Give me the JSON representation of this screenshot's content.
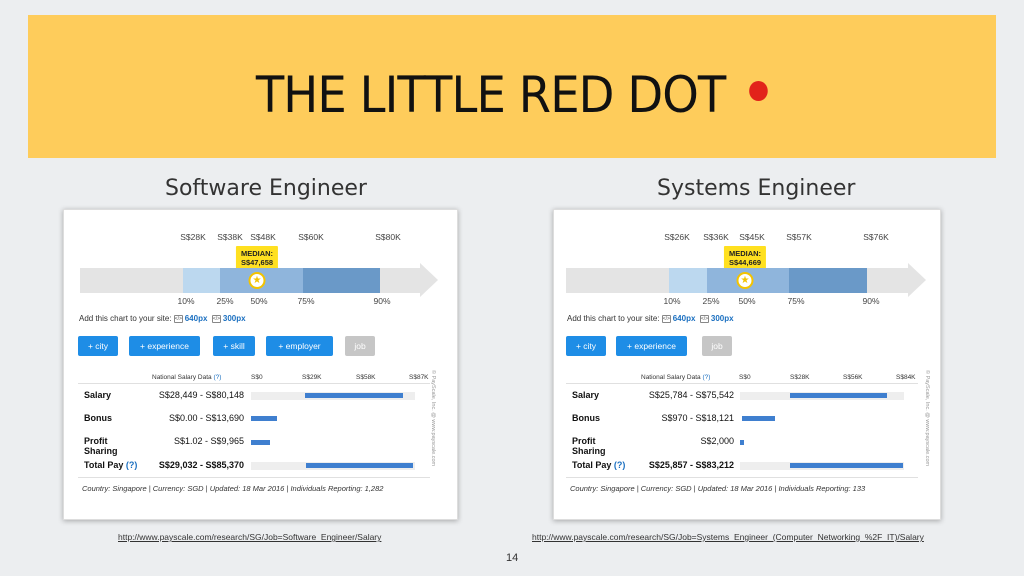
{
  "slide": {
    "title": "THE LITTLE RED DOT",
    "page_number": "14",
    "colors": {
      "banner": "#fecc5b",
      "dot": "#e2231a",
      "accent": "#1e8de6"
    }
  },
  "left": {
    "heading": "Software Engineer",
    "ticks_top": [
      "S$28K",
      "S$38K",
      "S$48K",
      "S$60K",
      "S$80K"
    ],
    "ticks_bottom": [
      "10%",
      "25%",
      "50%",
      "75%",
      "90%"
    ],
    "median": "MEDIAN: S$47,658",
    "add_chart": "Add this chart to your site:",
    "size_640": "640px",
    "size_300": "300px",
    "buttons": [
      "+ city",
      "+ experience",
      "+ skill",
      "+ employer",
      "job"
    ],
    "table_header": "National Salary Data",
    "help": "(?)",
    "axis": [
      "S$0",
      "S$29K",
      "S$58K",
      "S$87K"
    ],
    "rows": [
      {
        "label": "Salary",
        "value": "S$28,449 - S$80,148"
      },
      {
        "label": "Bonus",
        "value": "S$0.00 - S$13,690"
      },
      {
        "label": "Profit Sharing",
        "value": "S$1.02 - S$9,965"
      },
      {
        "label": "Total Pay",
        "value": "S$29,032 - S$85,370"
      }
    ],
    "footer": "Country: Singapore  |  Currency: SGD  |  Updated: 18 Mar 2016  |  Individuals Reporting: 1,282",
    "watermark": "© PayScale, Inc. @ www.payscale.com",
    "url": "http://www.payscale.com/research/SG/Job=Software_Engineer/Salary"
  },
  "right": {
    "heading": "Systems Engineer",
    "ticks_top": [
      "S$26K",
      "S$36K",
      "S$45K",
      "S$57K",
      "S$76K"
    ],
    "ticks_bottom": [
      "10%",
      "25%",
      "50%",
      "75%",
      "90%"
    ],
    "median": "MEDIAN: S$44,669",
    "add_chart": "Add this chart to your site:",
    "size_640": "640px",
    "size_300": "300px",
    "buttons": [
      "+ city",
      "+ experience",
      "job"
    ],
    "table_header": "National Salary Data",
    "help": "(?)",
    "axis": [
      "S$0",
      "S$28K",
      "S$56K",
      "S$84K"
    ],
    "rows": [
      {
        "label": "Salary",
        "value": "S$25,784 - S$75,542"
      },
      {
        "label": "Bonus",
        "value": "S$970 - S$18,121"
      },
      {
        "label": "Profit Sharing",
        "value": "S$2,000"
      },
      {
        "label": "Total Pay",
        "value": "S$25,857 - S$83,212"
      }
    ],
    "footer": "Country: Singapore  |  Currency: SGD  |  Updated: 18 Mar 2016  |  Individuals Reporting: 133",
    "watermark": "© PayScale, Inc. @ www.payscale.com",
    "url": "http://www.payscale.com/research/SG/Job=Systems_Engineer_(Computer_Networking_%2F_IT)/Salary"
  }
}
